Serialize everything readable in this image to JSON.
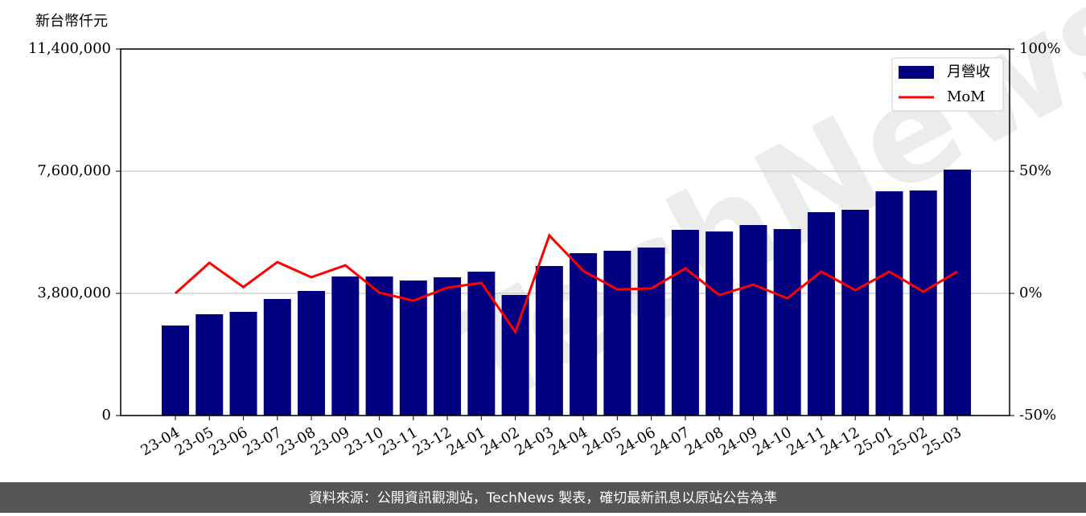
{
  "chart_data": {
    "type": "bar",
    "y_label": "新台幣仟元",
    "watermark": "TechNews",
    "footer": "資料來源：公開資訊觀測站，TechNews 製表，確切最新訊息以原站公告為準",
    "categories": [
      "23-04",
      "23-05",
      "23-06",
      "23-07",
      "23-08",
      "23-09",
      "23-10",
      "23-11",
      "23-12",
      "24-01",
      "24-02",
      "24-03",
      "24-04",
      "24-05",
      "24-06",
      "24-07",
      "24-08",
      "24-09",
      "24-10",
      "24-11",
      "24-12",
      "25-01",
      "25-02",
      "25-03"
    ],
    "series": [
      {
        "name": "月營收",
        "type": "bar",
        "color": "#000080",
        "values": [
          2800000,
          3150000,
          3225000,
          3625000,
          3875000,
          4325000,
          4325000,
          4200000,
          4300000,
          4475000,
          3750000,
          4650000,
          5050000,
          5125000,
          5225000,
          5775000,
          5725000,
          5925000,
          5800000,
          6325000,
          6400000,
          6975000,
          7000000,
          7650000
        ]
      },
      {
        "name": "MoM",
        "type": "line",
        "color": "#ff0000",
        "axis": "y2",
        "values": [
          0,
          12.5,
          2.6,
          12.8,
          6.6,
          11.5,
          0.3,
          -3.0,
          2.3,
          4.3,
          -15.8,
          23.7,
          9.2,
          1.6,
          2.0,
          10.2,
          -0.7,
          3.6,
          -2.0,
          8.9,
          1.3,
          8.9,
          0.7,
          8.9
        ]
      }
    ],
    "ylim": [
      0,
      11400000
    ],
    "yticks": [
      0,
      {
        "value": 3800000,
        "label": "3,800,000"
      },
      {
        "value": 7600000,
        "label": "7,600,000"
      },
      {
        "value": 11400000,
        "label": "11,400,000"
      }
    ],
    "y2lim": [
      -50,
      100
    ],
    "y2ticks": [
      {
        "value": -50,
        "label": "-50%"
      },
      {
        "value": 0,
        "label": "0%"
      },
      {
        "value": 50,
        "label": "50%"
      },
      {
        "value": 100,
        "label": "100%"
      }
    ],
    "grid": true,
    "legend": "upper right"
  }
}
